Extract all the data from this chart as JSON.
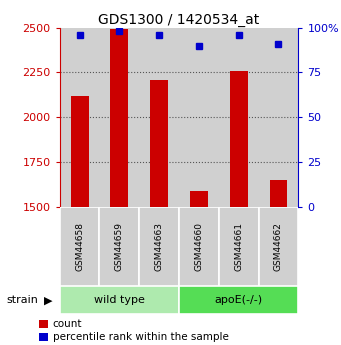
{
  "title": "GDS1300 / 1420534_at",
  "samples": [
    "GSM44658",
    "GSM44659",
    "GSM44663",
    "GSM44660",
    "GSM44661",
    "GSM44662"
  ],
  "counts": [
    2120,
    2490,
    2210,
    1590,
    2260,
    1650
  ],
  "percentiles": [
    96,
    98,
    96,
    90,
    96,
    91
  ],
  "ylim_left": [
    1500,
    2500
  ],
  "ylim_right": [
    0,
    100
  ],
  "yticks_left": [
    1500,
    1750,
    2000,
    2250,
    2500
  ],
  "yticks_right": [
    0,
    25,
    50,
    75,
    100
  ],
  "ytick_labels_right": [
    "0",
    "25",
    "50",
    "75",
    "100%"
  ],
  "groups": [
    {
      "label": "wild type",
      "indices": [
        0,
        1,
        2
      ],
      "color": "#aeeaae"
    },
    {
      "label": "apoE(-/-)",
      "indices": [
        3,
        4,
        5
      ],
      "color": "#55dd55"
    }
  ],
  "bar_color": "#cc0000",
  "dot_color": "#0000cc",
  "bar_width": 0.45,
  "strain_label": "strain",
  "legend_count_label": "count",
  "legend_pct_label": "percentile rank within the sample",
  "background_color": "#ffffff",
  "grid_color": "#888888",
  "left_tick_color": "#cc0000",
  "right_tick_color": "#0000cc",
  "col_bg_color": "#d0d0d0",
  "figsize": [
    3.41,
    3.45
  ],
  "dpi": 100
}
